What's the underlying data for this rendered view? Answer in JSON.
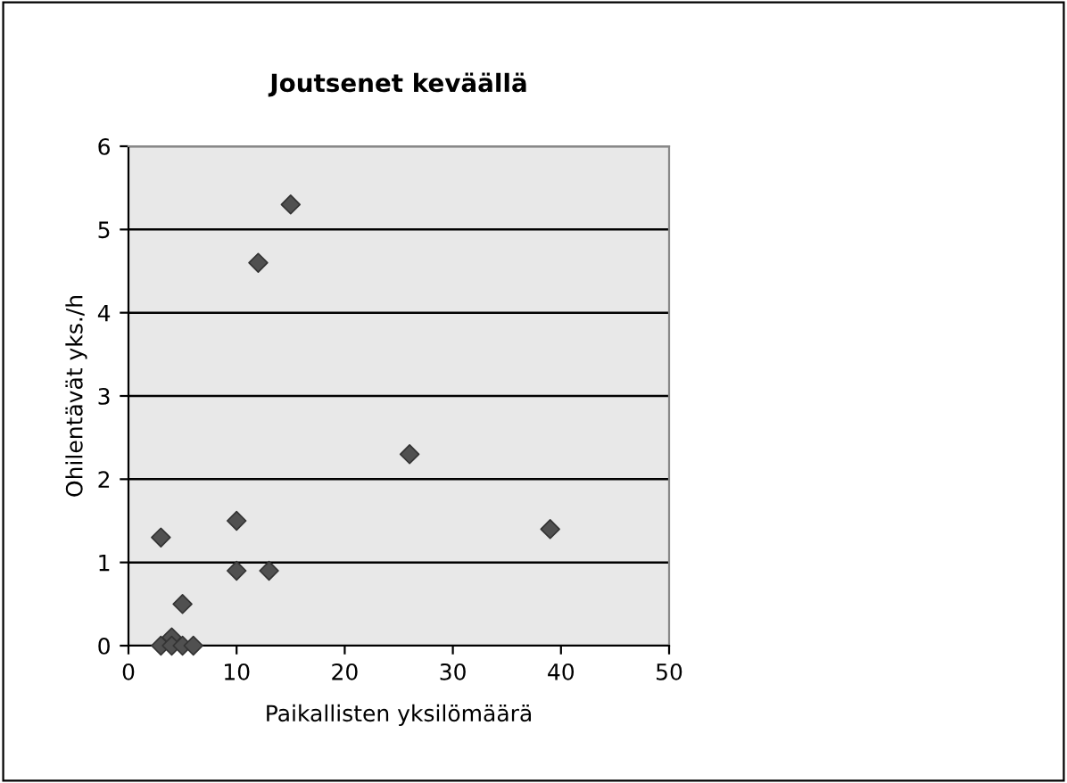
{
  "chart_data": {
    "type": "scatter",
    "title": "Joutsenet keväällä",
    "xlabel": "Paikallisten yksilömäärä",
    "ylabel": "Ohilentävät yks./h",
    "x": [
      3,
      3,
      4,
      4,
      5,
      5,
      6,
      10,
      10,
      13,
      12,
      15,
      26,
      39
    ],
    "values": [
      1.3,
      0,
      0.1,
      0,
      0.5,
      0,
      0,
      1.5,
      0.9,
      0.9,
      4.6,
      5.3,
      2.3,
      1.4
    ],
    "color": "#505050",
    "marker": "diamond",
    "xlim": [
      0,
      50
    ],
    "xticks": [
      0,
      10,
      20,
      30,
      40,
      50
    ],
    "ylim": [
      0,
      6
    ],
    "yticks": [
      0,
      1,
      2,
      3,
      4,
      5,
      6
    ],
    "grid": "y",
    "legend": false
  }
}
